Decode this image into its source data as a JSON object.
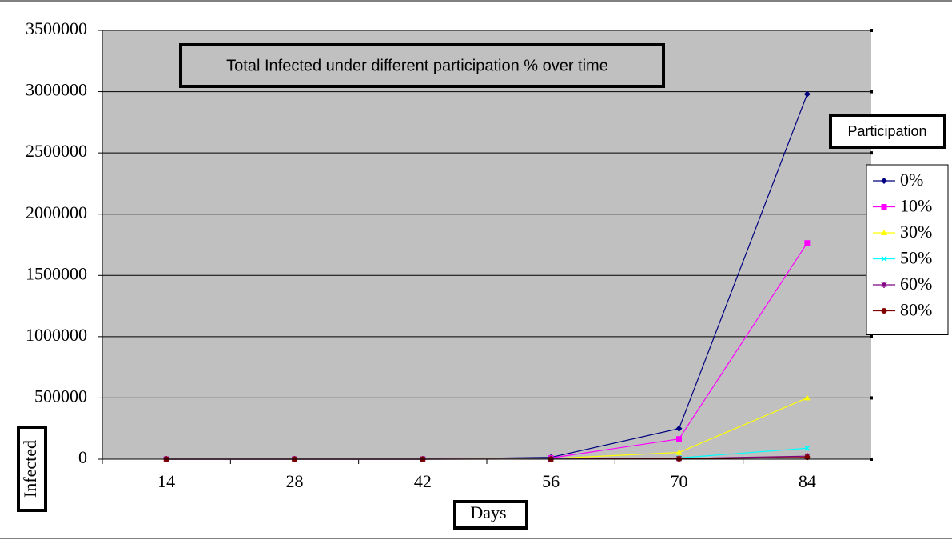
{
  "chart_data": {
    "type": "line",
    "title": "Total Infected under different participation % over time",
    "x_label": "Days",
    "y_label": "Infected",
    "legend_title": "Participation",
    "legend": "right",
    "grid": true,
    "categories": [
      "14",
      "28",
      "42",
      "56",
      "70",
      "84"
    ],
    "ylim": [
      0,
      3500000
    ],
    "yticks": [
      0,
      500000,
      1000000,
      1500000,
      2000000,
      2500000,
      3000000,
      3500000
    ],
    "series": [
      {
        "name": "0%",
        "color": "#000080",
        "marker": "diamond",
        "values": [
          0,
          0,
          0,
          15000,
          250000,
          2980000
        ]
      },
      {
        "name": "10%",
        "color": "#ff00ff",
        "marker": "square",
        "values": [
          0,
          0,
          0,
          10000,
          165000,
          1765000
        ]
      },
      {
        "name": "30%",
        "color": "#ffff00",
        "marker": "triangle",
        "values": [
          0,
          0,
          0,
          5000,
          55000,
          500000
        ]
      },
      {
        "name": "50%",
        "color": "#00ffff",
        "marker": "x",
        "values": [
          0,
          0,
          0,
          2000,
          10000,
          90000
        ]
      },
      {
        "name": "60%",
        "color": "#800080",
        "marker": "star",
        "values": [
          0,
          0,
          0,
          1000,
          5000,
          25000
        ]
      },
      {
        "name": "80%",
        "color": "#800000",
        "marker": "circle",
        "values": [
          0,
          0,
          0,
          500,
          3000,
          15000
        ]
      }
    ]
  }
}
